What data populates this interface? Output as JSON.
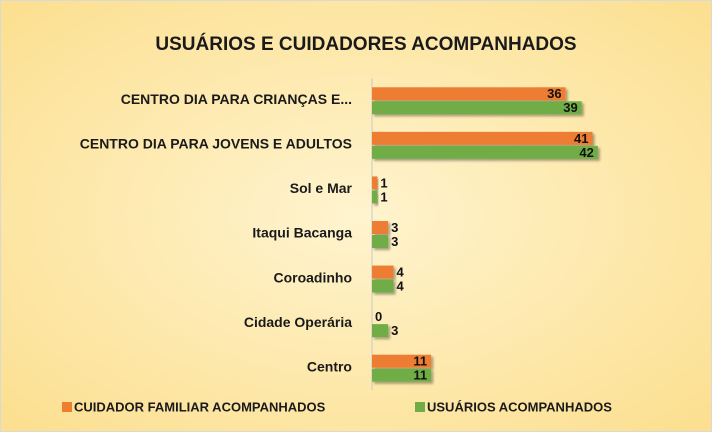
{
  "chart_data": {
    "type": "hbar",
    "title": "USUÁRIOS E CUIDADORES ACOMPANHADOS",
    "categories": [
      "CENTRO DIA PARA CRIANÇAS E...",
      "CENTRO DIA PARA JOVENS E ADULTOS",
      "Sol e Mar",
      "Itaqui Bacanga",
      "Coroadinho",
      "Cidade Operária",
      "Centro"
    ],
    "series": [
      {
        "name": "CUIDADOR FAMILIAR ACOMPANHADOS",
        "color": "#ed7d31",
        "values": [
          36,
          41,
          1,
          3,
          4,
          0,
          11
        ]
      },
      {
        "name": "USUÁRIOS ACOMPANHADOS",
        "color": "#70ad47",
        "values": [
          39,
          42,
          1,
          3,
          4,
          3,
          11
        ]
      }
    ],
    "xlim": [
      0,
      45
    ]
  }
}
